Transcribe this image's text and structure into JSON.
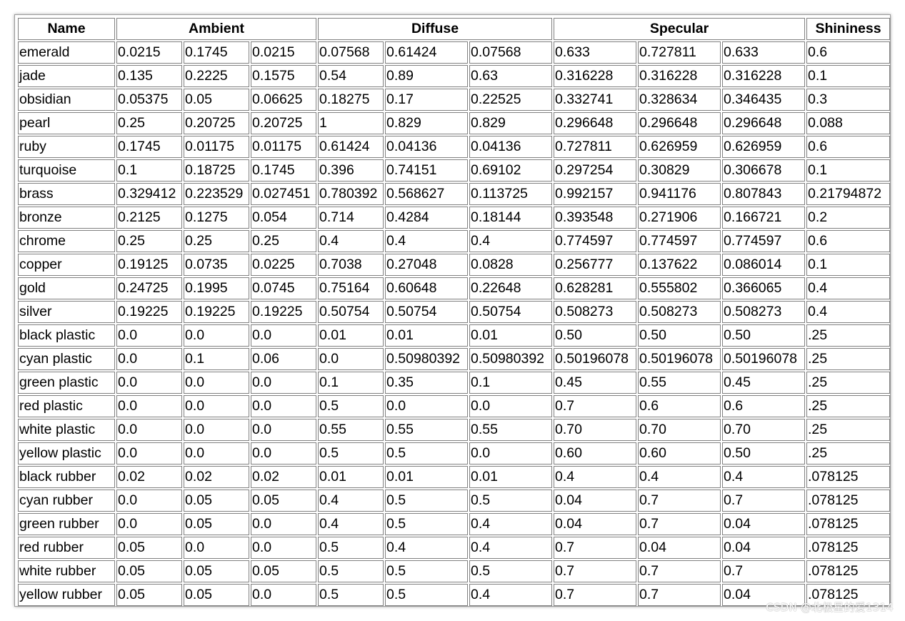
{
  "table": {
    "headers": {
      "name": "Name",
      "ambient": "Ambient",
      "diffuse": "Diffuse",
      "specular": "Specular",
      "shininess": "Shininess"
    },
    "rows": [
      [
        "emerald",
        "0.0215",
        "0.1745",
        "0.0215",
        "0.07568",
        "0.61424",
        "0.07568",
        "0.633",
        "0.727811",
        "0.633",
        "0.6"
      ],
      [
        "jade",
        "0.135",
        "0.2225",
        "0.1575",
        "0.54",
        "0.89",
        "0.63",
        "0.316228",
        "0.316228",
        "0.316228",
        "0.1"
      ],
      [
        "obsidian",
        "0.05375",
        "0.05",
        "0.06625",
        "0.18275",
        "0.17",
        "0.22525",
        "0.332741",
        "0.328634",
        "0.346435",
        "0.3"
      ],
      [
        "pearl",
        "0.25",
        "0.20725",
        "0.20725",
        "1",
        "0.829",
        "0.829",
        "0.296648",
        "0.296648",
        "0.296648",
        "0.088"
      ],
      [
        "ruby",
        "0.1745",
        "0.01175",
        "0.01175",
        "0.61424",
        "0.04136",
        "0.04136",
        "0.727811",
        "0.626959",
        "0.626959",
        "0.6"
      ],
      [
        "turquoise",
        "0.1",
        "0.18725",
        "0.1745",
        "0.396",
        "0.74151",
        "0.69102",
        "0.297254",
        "0.30829",
        "0.306678",
        "0.1"
      ],
      [
        "brass",
        "0.329412",
        "0.223529",
        "0.027451",
        "0.780392",
        "0.568627",
        "0.113725",
        "0.992157",
        "0.941176",
        "0.807843",
        "0.21794872"
      ],
      [
        "bronze",
        "0.2125",
        "0.1275",
        "0.054",
        "0.714",
        "0.4284",
        "0.18144",
        "0.393548",
        "0.271906",
        "0.166721",
        "0.2"
      ],
      [
        "chrome",
        "0.25",
        "0.25",
        "0.25",
        "0.4",
        "0.4",
        "0.4",
        "0.774597",
        "0.774597",
        "0.774597",
        "0.6"
      ],
      [
        "copper",
        "0.19125",
        "0.0735",
        "0.0225",
        "0.7038",
        "0.27048",
        "0.0828",
        "0.256777",
        "0.137622",
        "0.086014",
        "0.1"
      ],
      [
        "gold",
        "0.24725",
        "0.1995",
        "0.0745",
        "0.75164",
        "0.60648",
        "0.22648",
        "0.628281",
        "0.555802",
        "0.366065",
        "0.4"
      ],
      [
        "silver",
        "0.19225",
        "0.19225",
        "0.19225",
        "0.50754",
        "0.50754",
        "0.50754",
        "0.508273",
        "0.508273",
        "0.508273",
        "0.4"
      ],
      [
        "black plastic",
        "0.0",
        "0.0",
        "0.0",
        "0.01",
        "0.01",
        "0.01",
        "0.50",
        "0.50",
        "0.50",
        ".25"
      ],
      [
        "cyan plastic",
        "0.0",
        "0.1",
        "0.06",
        "0.0",
        "0.50980392",
        "0.50980392",
        "0.50196078",
        "0.50196078",
        "0.50196078",
        ".25"
      ],
      [
        "green plastic",
        "0.0",
        "0.0",
        "0.0",
        "0.1",
        "0.35",
        "0.1",
        "0.45",
        "0.55",
        "0.45",
        ".25"
      ],
      [
        "red plastic",
        "0.0",
        "0.0",
        "0.0",
        "0.5",
        "0.0",
        "0.0",
        "0.7",
        "0.6",
        "0.6",
        ".25"
      ],
      [
        "white plastic",
        "0.0",
        "0.0",
        "0.0",
        "0.55",
        "0.55",
        "0.55",
        "0.70",
        "0.70",
        "0.70",
        ".25"
      ],
      [
        "yellow plastic",
        "0.0",
        "0.0",
        "0.0",
        "0.5",
        "0.5",
        "0.0",
        "0.60",
        "0.60",
        "0.50",
        ".25"
      ],
      [
        "black rubber",
        "0.02",
        "0.02",
        "0.02",
        "0.01",
        "0.01",
        "0.01",
        "0.4",
        "0.4",
        "0.4",
        ".078125"
      ],
      [
        "cyan rubber",
        "0.0",
        "0.05",
        "0.05",
        "0.4",
        "0.5",
        "0.5",
        "0.04",
        "0.7",
        "0.7",
        ".078125"
      ],
      [
        "green rubber",
        "0.0",
        "0.05",
        "0.0",
        "0.4",
        "0.5",
        "0.4",
        "0.04",
        "0.7",
        "0.04",
        ".078125"
      ],
      [
        "red rubber",
        "0.05",
        "0.0",
        "0.0",
        "0.5",
        "0.4",
        "0.4",
        "0.7",
        "0.04",
        "0.04",
        ".078125"
      ],
      [
        "white rubber",
        "0.05",
        "0.05",
        "0.05",
        "0.5",
        "0.5",
        "0.5",
        "0.7",
        "0.7",
        "0.7",
        ".078125"
      ],
      [
        "yellow rubber",
        "0.05",
        "0.05",
        "0.0",
        "0.5",
        "0.5",
        "0.4",
        "0.7",
        "0.7",
        "0.04",
        ".078125"
      ]
    ]
  },
  "watermark": "CSDN @北极星的爱1314",
  "colors": {
    "background": "#ffffff",
    "cell_border": "#808080",
    "frame_border": "#9a9a9a",
    "text": "#000000"
  }
}
